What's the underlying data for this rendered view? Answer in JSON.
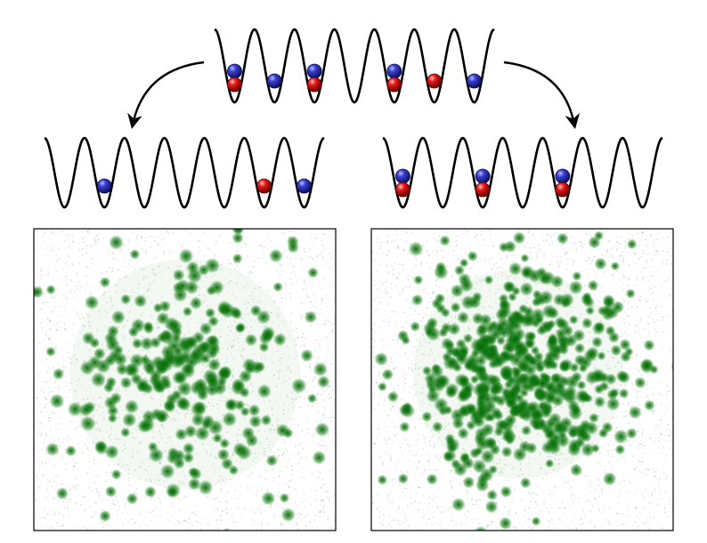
{
  "figure": {
    "colors": {
      "line": "#000000",
      "blue_atom": "#2b2fb0",
      "red_atom": "#d41010",
      "dot": "#0a6e0a",
      "frame": "#000000"
    },
    "icons": [
      "curved-arrow-icon",
      "blue-atom-icon",
      "red-atom-icon"
    ],
    "top_lattice": {
      "sites": 7,
      "occupancy": [
        [
          "blue",
          "red"
        ],
        [
          "blue"
        ],
        [
          "blue",
          "red"
        ],
        [],
        [
          "blue",
          "red"
        ],
        [
          "red"
        ],
        [
          "blue"
        ]
      ]
    },
    "left_lattice": {
      "sites": 7,
      "occupancy": [
        [],
        [
          "blue"
        ],
        [],
        [],
        [],
        [
          "red"
        ],
        [
          "blue"
        ]
      ]
    },
    "right_lattice": {
      "sites": 7,
      "occupancy": [
        [
          "blue",
          "red"
        ],
        [],
        [
          "blue",
          "red"
        ],
        [],
        [
          "blue",
          "red"
        ],
        [],
        []
      ]
    },
    "left_image": {
      "pattern": "sparse-clusters"
    },
    "right_image": {
      "pattern": "dense-cloud"
    }
  }
}
